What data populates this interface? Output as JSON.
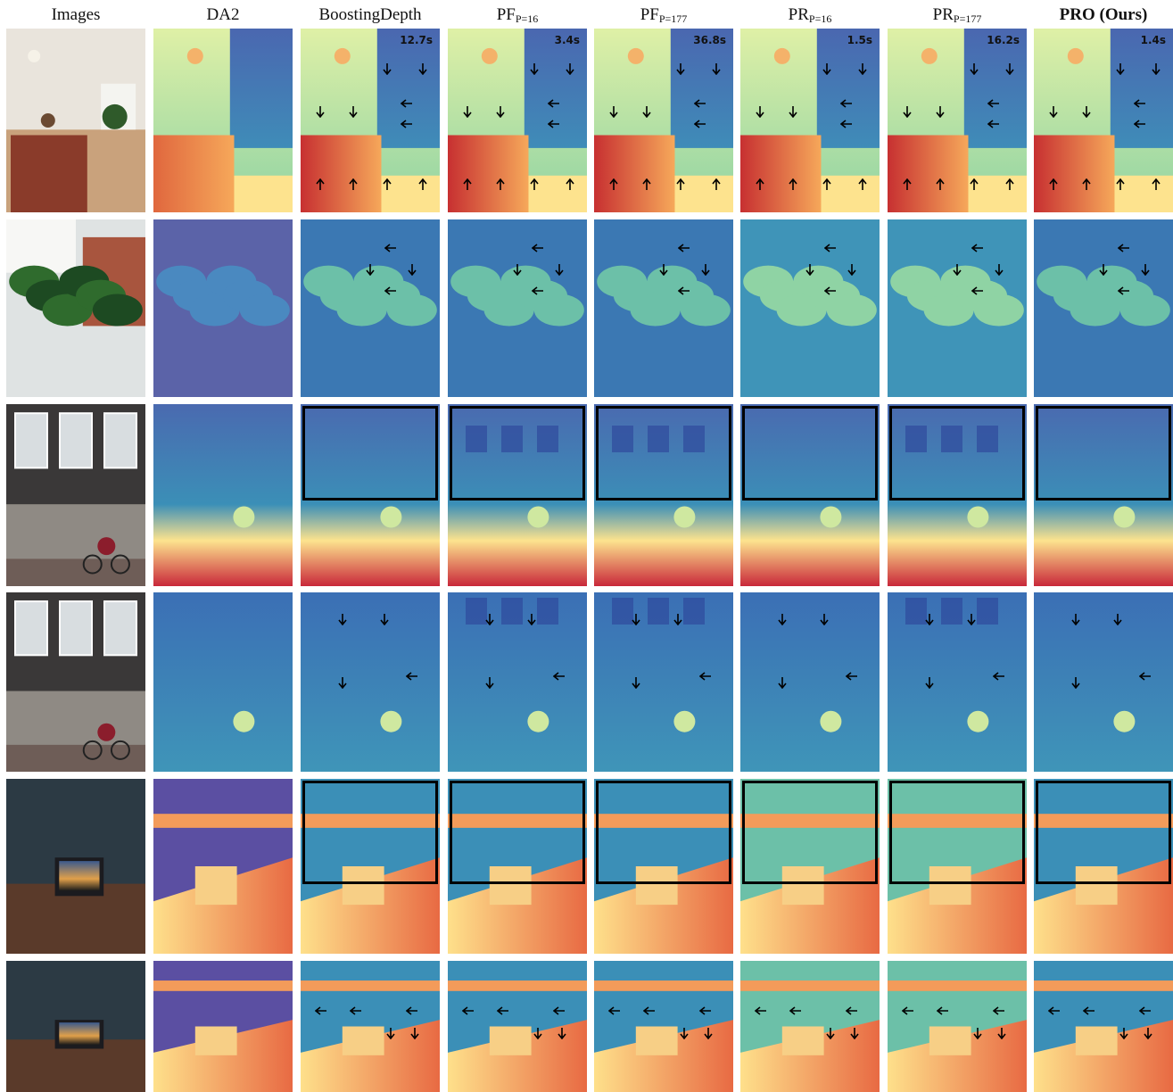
{
  "columns": [
    {
      "key": "images",
      "label": "Images",
      "sub": "",
      "bold": false
    },
    {
      "key": "da2",
      "label": "DA2",
      "sub": "",
      "bold": false
    },
    {
      "key": "boosting",
      "label": "BoostingDepth",
      "sub": "",
      "bold": false
    },
    {
      "key": "pf16",
      "label": "PF",
      "sub": "P=16",
      "bold": false
    },
    {
      "key": "pf177",
      "label": "PF",
      "sub": "P=177",
      "bold": false
    },
    {
      "key": "pr16",
      "label": "PR",
      "sub": "P=16",
      "bold": false
    },
    {
      "key": "pr177",
      "label": "PR",
      "sub": "P=177",
      "bold": false
    },
    {
      "key": "pro",
      "label": "PRO (Ours)",
      "sub": "",
      "bold": true
    }
  ],
  "timings": {
    "boosting": "12.7s",
    "pf16": "3.4s",
    "pf177": "36.8s",
    "pr16": "1.5s",
    "pr177": "16.2s",
    "pro": "1.4s"
  },
  "rows": [
    {
      "scene": "kitchen-interior",
      "palette": "warm-cool"
    },
    {
      "scene": "monstera-plant",
      "palette": "cool"
    },
    {
      "scene": "building-cyclist-wide",
      "palette": "cool-warm-bottom"
    },
    {
      "scene": "building-cyclist-close",
      "palette": "cool"
    },
    {
      "scene": "desk-laptop-wide",
      "palette": "warm-cool"
    },
    {
      "scene": "desk-laptop-close",
      "palette": "warm-cool"
    }
  ],
  "colors": {
    "near": "#d73027",
    "mid": "#fee08b",
    "midcool": "#66c2a5",
    "far": "#3b6fb5",
    "farthest": "#5e4fa2"
  }
}
